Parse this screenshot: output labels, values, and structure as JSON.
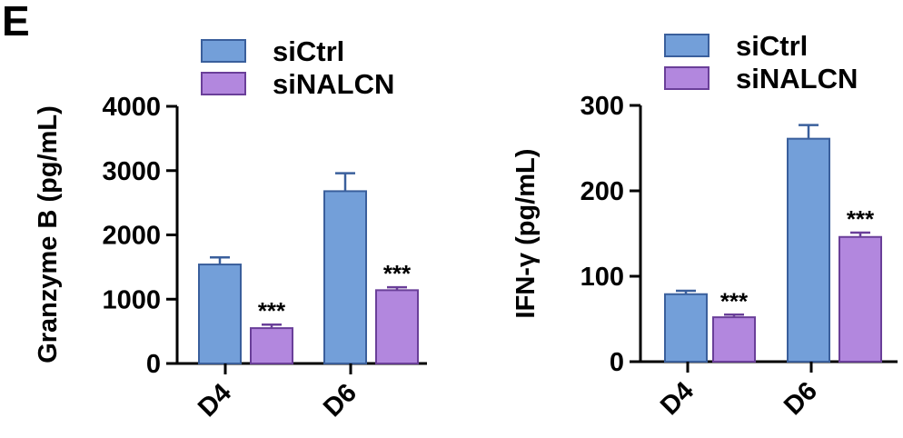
{
  "panel_label": "E",
  "colors": {
    "siCtrl": "#739fd9",
    "siCtrl_edge": "#3a5f9c",
    "siNALCN": "#b287de",
    "siNALCN_edge": "#6a3f99"
  },
  "chart_data": [
    {
      "type": "bar",
      "categories": [
        "D4",
        "D6"
      ],
      "ylabel": "Granzyme B (pg/mL)",
      "ylim": [
        0,
        4000
      ],
      "yticks": [
        0,
        1000,
        2000,
        3000,
        4000
      ],
      "series": [
        {
          "name": "siCtrl",
          "values": [
            1540,
            2680
          ],
          "errors": [
            110,
            280
          ],
          "labels": [
            "",
            ""
          ]
        },
        {
          "name": "siNALCN",
          "values": [
            550,
            1140
          ],
          "errors": [
            55,
            45
          ],
          "labels": [
            "***",
            "***"
          ]
        }
      ],
      "legend": "top"
    },
    {
      "type": "bar",
      "categories": [
        "D4",
        "D6"
      ],
      "ylabel": "IFN-γ (pg/mL)",
      "ylim": [
        0,
        300
      ],
      "yticks": [
        0,
        100,
        200,
        300
      ],
      "series": [
        {
          "name": "siCtrl",
          "values": [
            79,
            261
          ],
          "errors": [
            4,
            16
          ],
          "labels": [
            "",
            ""
          ]
        },
        {
          "name": "siNALCN",
          "values": [
            52,
            146
          ],
          "errors": [
            3,
            5
          ],
          "labels": [
            "***",
            "***"
          ]
        }
      ],
      "legend": "top"
    }
  ]
}
